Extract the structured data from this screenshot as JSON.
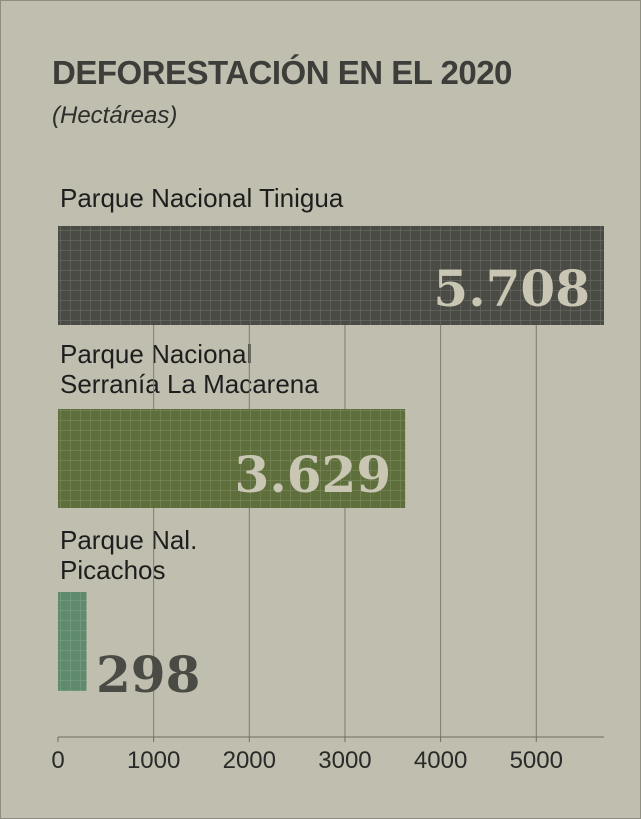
{
  "chart_data": {
    "type": "bar",
    "orientation": "horizontal",
    "title": "DEFORESTACIÓN EN EL 2020",
    "subtitle": "(Hectáreas)",
    "categories": [
      "Parque Nacional Tinigua",
      "Parque Nacional Serranía La Macarena",
      "Parque Nal. Picachos"
    ],
    "category_lines": [
      [
        "Parque Nacional Tinigua"
      ],
      [
        "Parque Nacional",
        "Serranía La Macarena"
      ],
      [
        "Parque Nal.",
        "Picachos"
      ]
    ],
    "values": [
      5708,
      3629,
      298
    ],
    "value_labels": [
      "5.708",
      "3.629",
      "298"
    ],
    "bar_colors": [
      "#4b4b45",
      "#5f6f3c",
      "#5f8a6e"
    ],
    "xlim": [
      0,
      5708
    ],
    "xticks": [
      0,
      1000,
      2000,
      3000,
      4000,
      5000
    ],
    "xtick_labels": [
      "0",
      "1000",
      "2000",
      "3000",
      "4000",
      "5000"
    ],
    "grid": true,
    "legend": "none"
  }
}
